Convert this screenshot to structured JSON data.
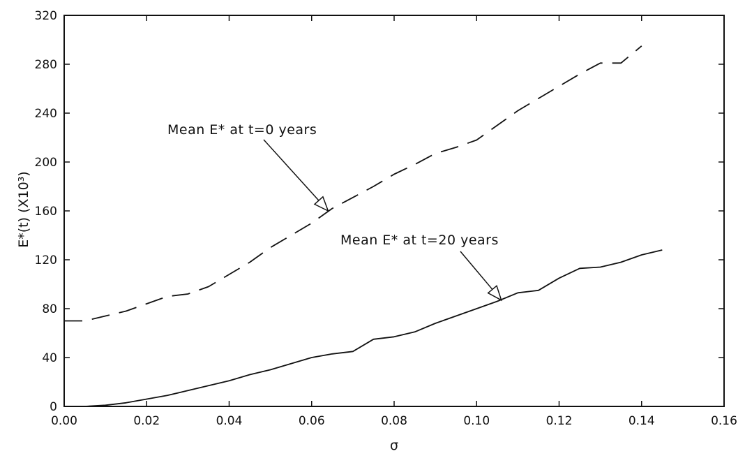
{
  "chart_data": {
    "type": "line",
    "xlabel": "σ",
    "ylabel": "E*(t) (X10³)",
    "xlim": [
      0.0,
      0.16
    ],
    "ylim": [
      0,
      320
    ],
    "xticks": [
      "0.00",
      "0.02",
      "0.04",
      "0.06",
      "0.08",
      "0.10",
      "0.12",
      "0.14",
      "0.16"
    ],
    "yticks": [
      "0",
      "40",
      "80",
      "120",
      "160",
      "200",
      "240",
      "280",
      "320"
    ],
    "grid": false,
    "series": [
      {
        "name": "Mean E* at t=0 years",
        "style": "dashed",
        "x": [
          0.0,
          0.005,
          0.01,
          0.015,
          0.02,
          0.025,
          0.03,
          0.035,
          0.04,
          0.045,
          0.05,
          0.055,
          0.06,
          0.065,
          0.07,
          0.075,
          0.08,
          0.085,
          0.09,
          0.095,
          0.1,
          0.105,
          0.11,
          0.115,
          0.12,
          0.125,
          0.13,
          0.135,
          0.14
        ],
        "y": [
          70,
          70,
          74,
          78,
          84,
          90,
          92,
          98,
          108,
          118,
          130,
          140,
          150,
          162,
          171,
          180,
          190,
          198,
          207,
          212,
          218,
          230,
          242,
          252,
          262,
          272,
          281,
          281,
          295
        ]
      },
      {
        "name": "Mean E* at t=20 years",
        "style": "solid",
        "x": [
          0.0,
          0.005,
          0.01,
          0.015,
          0.02,
          0.025,
          0.03,
          0.035,
          0.04,
          0.045,
          0.05,
          0.055,
          0.06,
          0.065,
          0.07,
          0.075,
          0.08,
          0.085,
          0.09,
          0.095,
          0.1,
          0.105,
          0.11,
          0.115,
          0.12,
          0.125,
          0.13,
          0.135,
          0.14,
          0.145
        ],
        "y": [
          0,
          0,
          1,
          3,
          6,
          9,
          13,
          17,
          21,
          26,
          30,
          35,
          40,
          43,
          45,
          55,
          57,
          61,
          68,
          74,
          80,
          86,
          93,
          95,
          105,
          113,
          114,
          118,
          124,
          128
        ]
      }
    ],
    "annotations": [
      {
        "text": "Mean E* at t=0 years",
        "target_x": 0.064,
        "target_y": 160
      },
      {
        "text": "Mean E* at t=20 years",
        "target_x": 0.106,
        "target_y": 87
      }
    ]
  }
}
